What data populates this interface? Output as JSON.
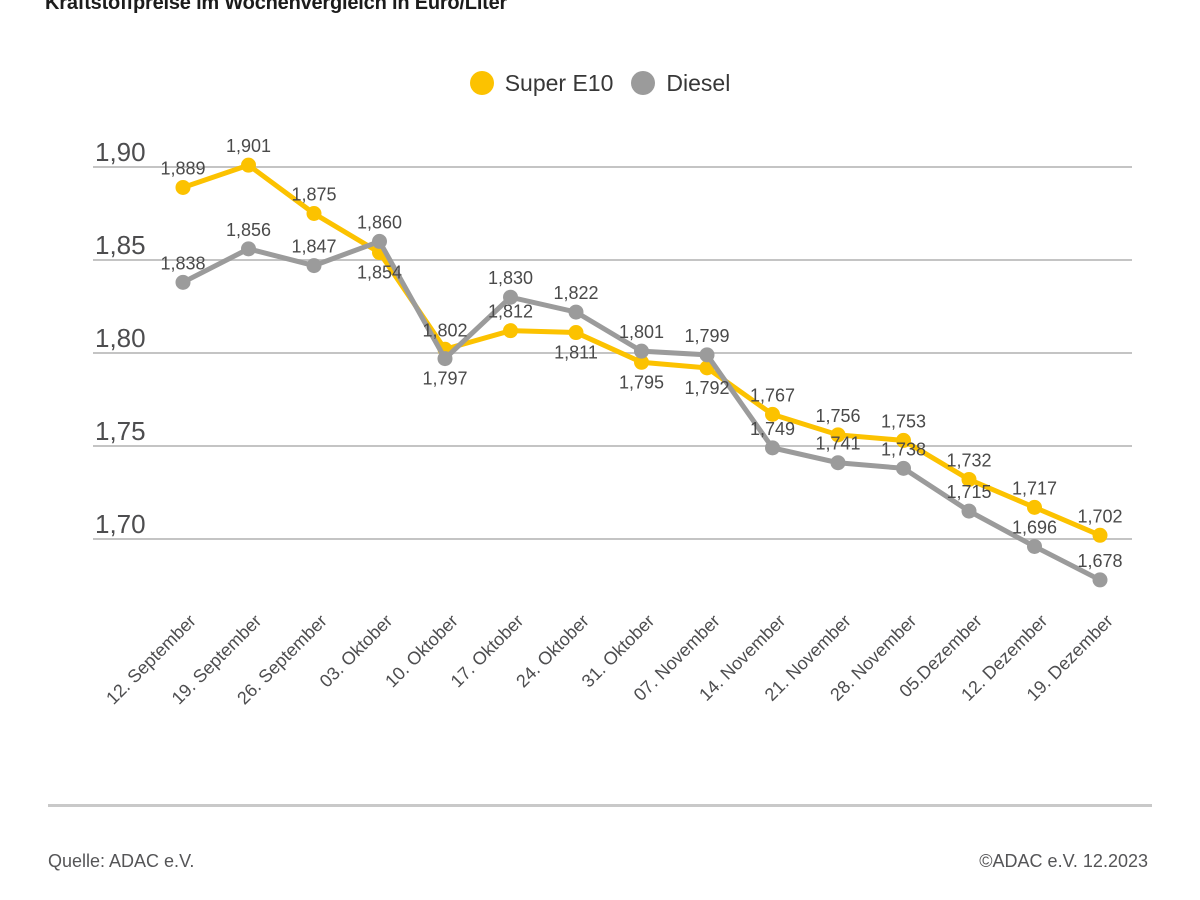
{
  "title": "Kraftstoffpreise im Wochenvergleich in Euro/Liter",
  "footer": {
    "source": "Quelle: ADAC e.V.",
    "copyright": "©ADAC e.V. 12.2023"
  },
  "chart_data": {
    "type": "line",
    "title": "Kraftstoffpreise im Wochenvergleich in Euro/Liter",
    "xlabel": "",
    "ylabel": "Euro/Liter",
    "grid": true,
    "legend_position": "top-center",
    "ylim": [
      1.66,
      1.92
    ],
    "yticks": [
      "1,90",
      "1,85",
      "1,80",
      "1,75",
      "1,70"
    ],
    "ytick_values": [
      1.9,
      1.85,
      1.8,
      1.75,
      1.7
    ],
    "x": [
      "12. September",
      "19. September",
      "26. September",
      "03. Oktober",
      "10. Oktober",
      "17. Oktober",
      "24. Oktober",
      "31. Oktober",
      "07. November",
      "14. November",
      "21. November",
      "28. November",
      "05.Dezember",
      "12. Dezember",
      "19. Dezember"
    ],
    "series": [
      {
        "name": "Super E10",
        "color": "#FCC200",
        "values": [
          1.889,
          1.901,
          1.875,
          1.854,
          1.802,
          1.812,
          1.811,
          1.795,
          1.792,
          1.767,
          1.756,
          1.753,
          1.732,
          1.717,
          1.702
        ],
        "label_side": [
          "above",
          "above",
          "above",
          "below",
          "above",
          "above",
          "below",
          "below",
          "below",
          "above",
          "above",
          "above",
          "above",
          "above",
          "above"
        ]
      },
      {
        "name": "Diesel",
        "color": "#9B9B9B",
        "values": [
          1.838,
          1.856,
          1.847,
          1.86,
          1.797,
          1.83,
          1.822,
          1.801,
          1.799,
          1.749,
          1.741,
          1.738,
          1.715,
          1.696,
          1.678
        ],
        "label_side": [
          "above",
          "above",
          "above",
          "above",
          "below",
          "above",
          "above",
          "above",
          "above",
          "above",
          "above",
          "above",
          "above",
          "above",
          "above"
        ]
      }
    ],
    "colors": {
      "grid": "#C4C4C4",
      "axis_text": "#4D4D4F",
      "value_text": "#4A4A4A"
    }
  }
}
